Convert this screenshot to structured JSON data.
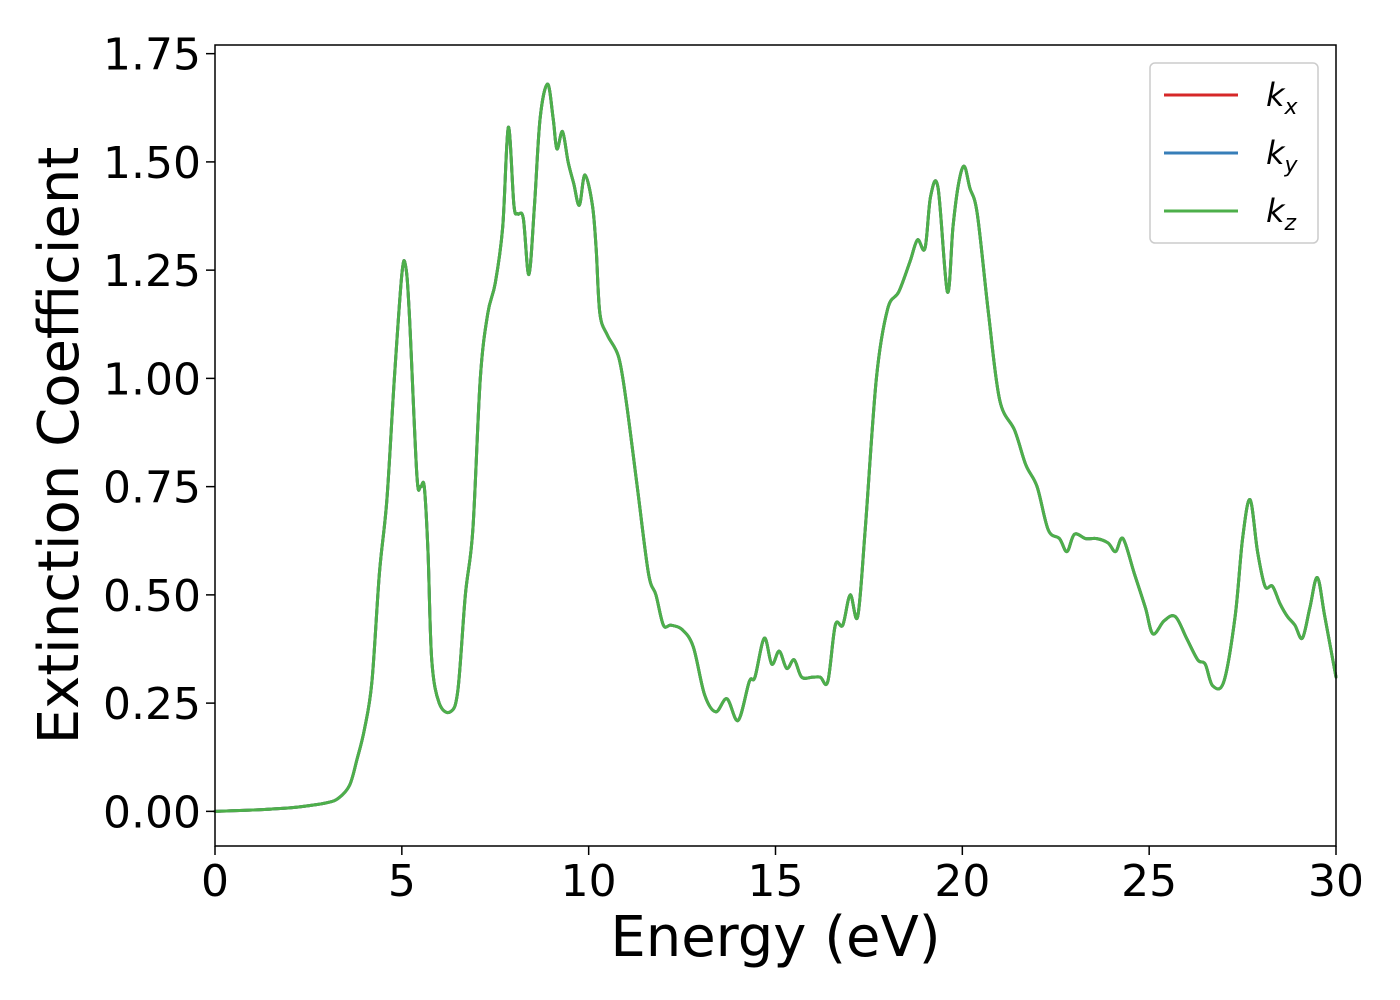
{
  "chart_data": {
    "type": "line",
    "title": "",
    "xlabel": "Energy (eV)",
    "ylabel": "Extinction Coefficient",
    "xlim": [
      0,
      30
    ],
    "ylim": [
      -0.08,
      1.77
    ],
    "xticks": [
      0,
      5,
      10,
      15,
      20,
      25,
      30
    ],
    "xtick_labels": [
      "0",
      "5",
      "10",
      "15",
      "20",
      "25",
      "30"
    ],
    "yticks": [
      0,
      0.25,
      0.5,
      0.75,
      1.0,
      1.25,
      1.5,
      1.75
    ],
    "ytick_labels": [
      "0.00",
      "0.25",
      "0.50",
      "0.75",
      "1.00",
      "1.25",
      "1.50",
      "1.75"
    ],
    "grid": false,
    "legend_position": "top-right",
    "x": [
      0,
      1,
      2,
      2.5,
      3,
      3.3,
      3.6,
      3.8,
      4.0,
      4.2,
      4.4,
      4.6,
      4.8,
      5.0,
      5.1,
      5.2,
      5.4,
      5.5,
      5.6,
      5.7,
      5.8,
      6.0,
      6.3,
      6.5,
      6.7,
      6.9,
      7.1,
      7.3,
      7.5,
      7.7,
      7.85,
      8.0,
      8.1,
      8.25,
      8.4,
      8.55,
      8.7,
      8.9,
      9.05,
      9.15,
      9.3,
      9.45,
      9.6,
      9.75,
      9.9,
      10.1,
      10.2,
      10.3,
      10.5,
      10.8,
      11.0,
      11.3,
      11.6,
      11.8,
      12.0,
      12.2,
      12.5,
      12.8,
      13.1,
      13.4,
      13.7,
      14.0,
      14.3,
      14.45,
      14.7,
      14.9,
      15.1,
      15.3,
      15.5,
      15.7,
      16.0,
      16.2,
      16.4,
      16.6,
      16.8,
      17.0,
      17.2,
      17.4,
      17.7,
      18.0,
      18.3,
      18.6,
      18.8,
      19.0,
      19.15,
      19.35,
      19.6,
      19.75,
      19.9,
      20.05,
      20.2,
      20.4,
      20.7,
      21.0,
      21.4,
      21.7,
      22.0,
      22.3,
      22.6,
      22.8,
      23.0,
      23.3,
      23.6,
      23.9,
      24.1,
      24.3,
      24.6,
      24.9,
      25.1,
      25.4,
      25.7,
      26.0,
      26.3,
      26.5,
      26.7,
      27.0,
      27.3,
      27.5,
      27.7,
      27.9,
      28.1,
      28.3,
      28.5,
      28.7,
      28.9,
      29.1,
      29.3,
      29.5,
      29.7,
      30.0
    ],
    "series": [
      {
        "name": "k_x",
        "color": "#d62728",
        "values": [
          0.0,
          0.003,
          0.008,
          0.013,
          0.02,
          0.03,
          0.06,
          0.12,
          0.19,
          0.3,
          0.55,
          0.72,
          1.0,
          1.24,
          1.26,
          1.15,
          0.78,
          0.75,
          0.75,
          0.6,
          0.35,
          0.25,
          0.23,
          0.28,
          0.5,
          0.65,
          1.0,
          1.15,
          1.22,
          1.35,
          1.58,
          1.4,
          1.38,
          1.37,
          1.24,
          1.4,
          1.6,
          1.68,
          1.6,
          1.53,
          1.57,
          1.5,
          1.45,
          1.4,
          1.47,
          1.4,
          1.3,
          1.15,
          1.1,
          1.05,
          0.95,
          0.75,
          0.55,
          0.5,
          0.43,
          0.43,
          0.42,
          0.38,
          0.27,
          0.23,
          0.26,
          0.21,
          0.3,
          0.31,
          0.4,
          0.34,
          0.37,
          0.33,
          0.35,
          0.31,
          0.31,
          0.31,
          0.3,
          0.43,
          0.43,
          0.5,
          0.45,
          0.65,
          1.0,
          1.16,
          1.2,
          1.27,
          1.32,
          1.3,
          1.42,
          1.44,
          1.2,
          1.35,
          1.45,
          1.49,
          1.44,
          1.38,
          1.15,
          0.95,
          0.88,
          0.8,
          0.75,
          0.65,
          0.63,
          0.6,
          0.64,
          0.63,
          0.63,
          0.62,
          0.6,
          0.63,
          0.55,
          0.47,
          0.41,
          0.44,
          0.45,
          0.4,
          0.35,
          0.34,
          0.29,
          0.3,
          0.45,
          0.63,
          0.72,
          0.6,
          0.52,
          0.52,
          0.48,
          0.45,
          0.43,
          0.4,
          0.47,
          0.54,
          0.45,
          0.31
        ]
      },
      {
        "name": "k_y",
        "color": "#377eb8",
        "values": [
          0.0,
          0.003,
          0.008,
          0.013,
          0.02,
          0.03,
          0.06,
          0.12,
          0.19,
          0.3,
          0.55,
          0.72,
          1.0,
          1.24,
          1.26,
          1.15,
          0.78,
          0.75,
          0.75,
          0.6,
          0.35,
          0.25,
          0.23,
          0.28,
          0.5,
          0.65,
          1.0,
          1.15,
          1.22,
          1.35,
          1.58,
          1.4,
          1.38,
          1.37,
          1.24,
          1.4,
          1.6,
          1.68,
          1.6,
          1.53,
          1.57,
          1.5,
          1.45,
          1.4,
          1.47,
          1.4,
          1.3,
          1.15,
          1.1,
          1.05,
          0.95,
          0.75,
          0.55,
          0.5,
          0.43,
          0.43,
          0.42,
          0.38,
          0.27,
          0.23,
          0.26,
          0.21,
          0.3,
          0.31,
          0.4,
          0.34,
          0.37,
          0.33,
          0.35,
          0.31,
          0.31,
          0.31,
          0.3,
          0.43,
          0.43,
          0.5,
          0.45,
          0.65,
          1.0,
          1.16,
          1.2,
          1.27,
          1.32,
          1.3,
          1.42,
          1.44,
          1.2,
          1.35,
          1.45,
          1.49,
          1.44,
          1.38,
          1.15,
          0.95,
          0.88,
          0.8,
          0.75,
          0.65,
          0.63,
          0.6,
          0.64,
          0.63,
          0.63,
          0.62,
          0.6,
          0.63,
          0.55,
          0.47,
          0.41,
          0.44,
          0.45,
          0.4,
          0.35,
          0.34,
          0.29,
          0.3,
          0.45,
          0.63,
          0.72,
          0.6,
          0.52,
          0.52,
          0.48,
          0.45,
          0.43,
          0.4,
          0.47,
          0.54,
          0.45,
          0.31
        ]
      },
      {
        "name": "k_z",
        "color": "#4daf4a",
        "values": [
          0.0,
          0.003,
          0.008,
          0.013,
          0.02,
          0.03,
          0.06,
          0.12,
          0.19,
          0.3,
          0.55,
          0.72,
          1.0,
          1.24,
          1.26,
          1.15,
          0.78,
          0.75,
          0.75,
          0.6,
          0.35,
          0.25,
          0.23,
          0.28,
          0.5,
          0.65,
          1.0,
          1.15,
          1.22,
          1.35,
          1.58,
          1.4,
          1.38,
          1.37,
          1.24,
          1.4,
          1.6,
          1.68,
          1.6,
          1.53,
          1.57,
          1.5,
          1.45,
          1.4,
          1.47,
          1.4,
          1.3,
          1.15,
          1.1,
          1.05,
          0.95,
          0.75,
          0.55,
          0.5,
          0.43,
          0.43,
          0.42,
          0.38,
          0.27,
          0.23,
          0.26,
          0.21,
          0.3,
          0.31,
          0.4,
          0.34,
          0.37,
          0.33,
          0.35,
          0.31,
          0.31,
          0.31,
          0.3,
          0.43,
          0.43,
          0.5,
          0.45,
          0.65,
          1.0,
          1.16,
          1.2,
          1.27,
          1.32,
          1.3,
          1.42,
          1.44,
          1.2,
          1.35,
          1.45,
          1.49,
          1.44,
          1.38,
          1.15,
          0.95,
          0.88,
          0.8,
          0.75,
          0.65,
          0.63,
          0.6,
          0.64,
          0.63,
          0.63,
          0.62,
          0.6,
          0.63,
          0.55,
          0.47,
          0.41,
          0.44,
          0.45,
          0.4,
          0.35,
          0.34,
          0.29,
          0.3,
          0.45,
          0.63,
          0.72,
          0.6,
          0.52,
          0.52,
          0.48,
          0.45,
          0.43,
          0.4,
          0.47,
          0.54,
          0.45,
          0.31
        ]
      }
    ],
    "legend": [
      {
        "base": "k",
        "sub": "x",
        "color": "#d62728"
      },
      {
        "base": "k",
        "sub": "y",
        "color": "#377eb8"
      },
      {
        "base": "k",
        "sub": "z",
        "color": "#4daf4a"
      }
    ]
  }
}
